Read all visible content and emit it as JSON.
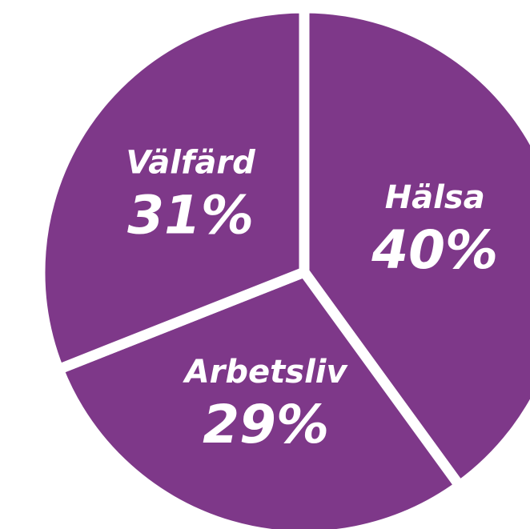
{
  "chart_data": {
    "type": "pie",
    "categories": [
      "Hälsa",
      "Arbetsliv",
      "Välfärd"
    ],
    "values": [
      40,
      29,
      31
    ],
    "value_labels": [
      "40%",
      "29%",
      "31%"
    ],
    "color": "#7e3889"
  }
}
